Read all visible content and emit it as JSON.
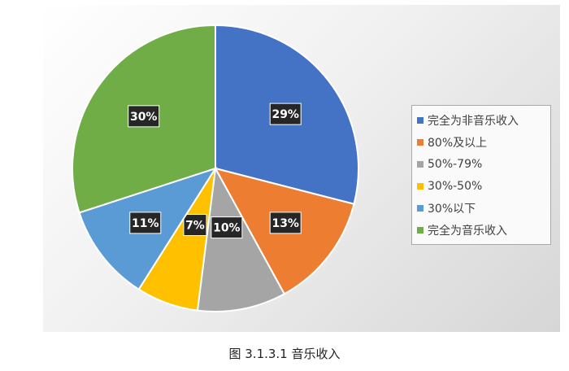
{
  "chart_data": {
    "type": "pie",
    "title": "",
    "caption": "图 3.1.3.1 音乐收入",
    "legend_position": "right",
    "slices": [
      {
        "name": "完全为非音乐收入",
        "value": 29,
        "label": "29%",
        "color": "#4472C4"
      },
      {
        "name": "80%及以上",
        "value": 13,
        "label": "13%",
        "color": "#ED7D31"
      },
      {
        "name": "50%-79%",
        "value": 10,
        "label": "10%",
        "color": "#A5A5A5"
      },
      {
        "name": "30%-50%",
        "value": 7,
        "label": "7%",
        "color": "#FFC000"
      },
      {
        "name": "30%以下",
        "value": 11,
        "label": "11%",
        "color": "#5B9BD5"
      },
      {
        "name": "完全为音乐收入",
        "value": 30,
        "label": "30%",
        "color": "#70AD47"
      }
    ]
  }
}
